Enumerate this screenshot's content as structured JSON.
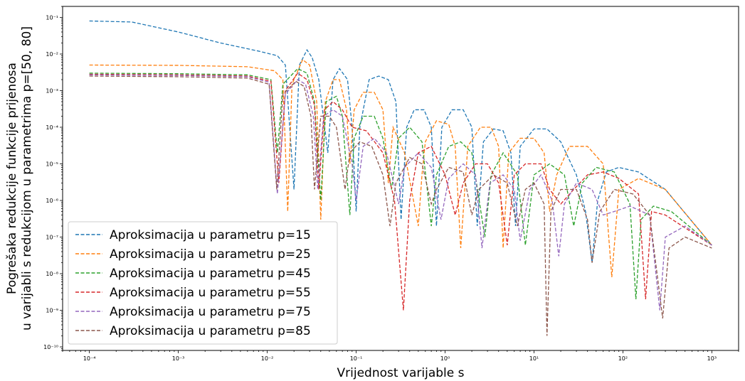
{
  "chart_data": {
    "type": "line",
    "title": "",
    "xlabel": "Vrijednost varijable s",
    "ylabel_lines": [
      "Pogrešaka redukcije funkcije prijenosa",
      "u varijabli s redukcijom u parametrima p=[50, 80]"
    ],
    "xscale": "log",
    "yscale": "log",
    "xlim": [
      5e-05,
      0.002
    ],
    "xlim_note": "",
    "x_range": [
      5e-05,
      2000
    ],
    "y_range": [
      8e-11,
      0.2
    ],
    "x_ticks": [
      {
        "value": 0.0001,
        "label": "10⁻⁴"
      },
      {
        "value": 0.001,
        "label": "10⁻³"
      },
      {
        "value": 0.01,
        "label": "10⁻²"
      },
      {
        "value": 0.1,
        "label": "10⁻¹"
      },
      {
        "value": 1,
        "label": "10⁰"
      },
      {
        "value": 10,
        "label": "10¹"
      },
      {
        "value": 100,
        "label": "10²"
      },
      {
        "value": 1000,
        "label": "10³"
      }
    ],
    "y_ticks": [
      {
        "value": 1e-10,
        "label": "10⁻¹⁰"
      },
      {
        "value": 1e-09,
        "label": "10⁻⁹"
      },
      {
        "value": 1e-08,
        "label": "10⁻⁸"
      },
      {
        "value": 1e-07,
        "label": "10⁻⁷"
      },
      {
        "value": 1e-06,
        "label": "10⁻⁶"
      },
      {
        "value": 1e-05,
        "label": "10⁻⁵"
      },
      {
        "value": 0.0001,
        "label": "10⁻⁴"
      },
      {
        "value": 0.001,
        "label": "10⁻³"
      },
      {
        "value": 0.01,
        "label": "10⁻²"
      },
      {
        "value": 0.1,
        "label": "10⁻¹"
      }
    ],
    "legend_position": "lower-left",
    "line_style": "dashed",
    "series": [
      {
        "name": "Aproksimacija u parametru p=15",
        "color": "#1f77b4",
        "base": 0.08,
        "drop_center": 0.003,
        "points": [
          [
            0.0001,
            0.08
          ],
          [
            0.0003,
            0.075
          ],
          [
            0.001,
            0.04
          ],
          [
            0.003,
            0.02
          ],
          [
            0.008,
            0.012
          ],
          [
            0.013,
            0.009
          ],
          [
            0.016,
            0.005
          ],
          [
            0.02,
            2e-06
          ],
          [
            0.023,
            0.005
          ],
          [
            0.028,
            0.013
          ],
          [
            0.032,
            0.008
          ],
          [
            0.038,
            0.002
          ],
          [
            0.048,
            2e-05
          ],
          [
            0.055,
            0.002
          ],
          [
            0.065,
            0.004
          ],
          [
            0.08,
            0.002
          ],
          [
            0.09,
            0.0001
          ],
          [
            0.1,
            5e-07
          ],
          [
            0.11,
            0.0001
          ],
          [
            0.14,
            0.002
          ],
          [
            0.18,
            0.0025
          ],
          [
            0.23,
            0.002
          ],
          [
            0.28,
            0.0005
          ],
          [
            0.32,
            3e-07
          ],
          [
            0.37,
            0.0001
          ],
          [
            0.45,
            0.0003
          ],
          [
            0.58,
            0.0003
          ],
          [
            0.7,
            0.0001
          ],
          [
            0.8,
            2e-07
          ],
          [
            0.92,
            0.0001
          ],
          [
            1.2,
            0.0003
          ],
          [
            1.6,
            0.0003
          ],
          [
            2,
            0.0001
          ],
          [
            2.3,
            2e-07
          ],
          [
            2.7,
            4e-05
          ],
          [
            3.5,
            9e-05
          ],
          [
            4.5,
            8e-05
          ],
          [
            5.5,
            2e-05
          ],
          [
            6.2,
            2e-07
          ],
          [
            7,
            3e-05
          ],
          [
            10,
            9e-05
          ],
          [
            14,
            9e-05
          ],
          [
            20,
            4e-05
          ],
          [
            30,
            5e-06
          ],
          [
            38,
            5e-07
          ],
          [
            45,
            2e-08
          ],
          [
            52,
            1e-06
          ],
          [
            65,
            6e-06
          ],
          [
            90,
            8e-06
          ],
          [
            150,
            6e-06
          ],
          [
            300,
            2e-06
          ],
          [
            1000,
            6e-08
          ]
        ]
      },
      {
        "name": "Aproksimacija u parametru p=25",
        "color": "#ff7f0e",
        "points": [
          [
            0.0001,
            0.005
          ],
          [
            0.001,
            0.0049
          ],
          [
            0.006,
            0.0045
          ],
          [
            0.012,
            0.0035
          ],
          [
            0.015,
            0.002
          ],
          [
            0.017,
            5e-07
          ],
          [
            0.019,
            0.0015
          ],
          [
            0.025,
            0.007
          ],
          [
            0.03,
            0.005
          ],
          [
            0.036,
            0.0005
          ],
          [
            0.04,
            3e-07
          ],
          [
            0.045,
            0.0005
          ],
          [
            0.055,
            0.002
          ],
          [
            0.065,
            0.002
          ],
          [
            0.078,
            0.0003
          ],
          [
            0.085,
            1e-05
          ],
          [
            0.095,
            0.0003
          ],
          [
            0.12,
            0.0009
          ],
          [
            0.16,
            0.0009
          ],
          [
            0.2,
            0.0003
          ],
          [
            0.23,
            3e-06
          ],
          [
            0.26,
            0.0001
          ],
          [
            0.35,
            2e-05
          ],
          [
            0.5,
            2e-07
          ],
          [
            0.55,
            5e-06
          ],
          [
            0.6,
            4e-05
          ],
          [
            0.8,
            0.00015
          ],
          [
            1.1,
            0.00012
          ],
          [
            1.3,
            3e-05
          ],
          [
            1.5,
            5e-08
          ],
          [
            1.8,
            3e-05
          ],
          [
            2.5,
            0.0001
          ],
          [
            3.3,
            0.0001
          ],
          [
            4,
            3e-05
          ],
          [
            4.5,
            5e-08
          ],
          [
            5.2,
            2e-05
          ],
          [
            7,
            5e-05
          ],
          [
            10,
            5e-05
          ],
          [
            13,
            2e-05
          ],
          [
            15,
            5e-07
          ],
          [
            18,
            5e-06
          ],
          [
            25,
            3e-05
          ],
          [
            40,
            3e-05
          ],
          [
            60,
            1e-05
          ],
          [
            75,
            8e-09
          ],
          [
            90,
            2e-06
          ],
          [
            150,
            4e-06
          ],
          [
            300,
            2e-06
          ],
          [
            1000,
            6e-08
          ]
        ]
      },
      {
        "name": "Aproksimacija u parametru p=45",
        "color": "#2ca02c",
        "points": [
          [
            0.0001,
            0.003
          ],
          [
            0.001,
            0.0029
          ],
          [
            0.006,
            0.0027
          ],
          [
            0.011,
            0.002
          ],
          [
            0.013,
            2e-05
          ],
          [
            0.015,
            0.0015
          ],
          [
            0.022,
            0.004
          ],
          [
            0.028,
            0.003
          ],
          [
            0.034,
            0.0005
          ],
          [
            0.04,
            1e-06
          ],
          [
            0.046,
            0.0005
          ],
          [
            0.06,
            0.0007
          ],
          [
            0.07,
            0.0002
          ],
          [
            0.085,
            4e-07
          ],
          [
            0.095,
            5e-05
          ],
          [
            0.12,
            0.0002
          ],
          [
            0.16,
            0.0002
          ],
          [
            0.2,
            5e-05
          ],
          [
            0.25,
            2e-06
          ],
          [
            0.3,
            5e-05
          ],
          [
            0.4,
            0.0001
          ],
          [
            0.55,
            4e-05
          ],
          [
            0.7,
            2e-07
          ],
          [
            0.8,
            5e-06
          ],
          [
            1.1,
            3e-05
          ],
          [
            1.5,
            4e-05
          ],
          [
            2,
            2e-05
          ],
          [
            2.8,
            1e-07
          ],
          [
            3.3,
            5e-06
          ],
          [
            4.5,
            2e-05
          ],
          [
            6.5,
            5e-06
          ],
          [
            8,
            6e-08
          ],
          [
            10,
            5e-06
          ],
          [
            15,
            1e-05
          ],
          [
            22,
            5e-06
          ],
          [
            28,
            2e-07
          ],
          [
            35,
            3e-06
          ],
          [
            50,
            8e-06
          ],
          [
            80,
            6e-06
          ],
          [
            120,
            8e-07
          ],
          [
            140,
            2e-09
          ],
          [
            160,
            3e-07
          ],
          [
            220,
            7e-07
          ],
          [
            350,
            5e-07
          ],
          [
            1000,
            6e-08
          ]
        ]
      },
      {
        "name": "Aproksimacija u parametru p=55",
        "color": "#d62728",
        "points": [
          [
            0.0001,
            0.0028
          ],
          [
            0.001,
            0.0027
          ],
          [
            0.006,
            0.0025
          ],
          [
            0.011,
            0.0018
          ],
          [
            0.0135,
            3e-06
          ],
          [
            0.016,
            0.001
          ],
          [
            0.022,
            0.003
          ],
          [
            0.028,
            0.002
          ],
          [
            0.034,
            0.0004
          ],
          [
            0.038,
            2e-06
          ],
          [
            0.044,
            0.0003
          ],
          [
            0.055,
            0.0005
          ],
          [
            0.07,
            0.0003
          ],
          [
            0.09,
            0.0001
          ],
          [
            0.13,
            8e-05
          ],
          [
            0.2,
            2e-05
          ],
          [
            0.27,
            1e-06
          ],
          [
            0.34,
            1e-09
          ],
          [
            0.4,
            1e-06
          ],
          [
            0.5,
            2e-05
          ],
          [
            0.7,
            3e-05
          ],
          [
            1,
            5e-06
          ],
          [
            1.3,
            4e-07
          ],
          [
            1.6,
            3e-06
          ],
          [
            2.2,
            1e-05
          ],
          [
            3,
            1e-05
          ],
          [
            4,
            3e-06
          ],
          [
            5,
            6e-08
          ],
          [
            6,
            5e-06
          ],
          [
            8,
            1e-05
          ],
          [
            12,
            1e-05
          ],
          [
            15,
            2e-06
          ],
          [
            20,
            8e-07
          ],
          [
            28,
            2e-06
          ],
          [
            40,
            5e-06
          ],
          [
            60,
            6e-06
          ],
          [
            90,
            4e-06
          ],
          [
            150,
            1.5e-06
          ],
          [
            180,
            2e-09
          ],
          [
            210,
            5e-07
          ],
          [
            300,
            4e-07
          ],
          [
            1000,
            6e-08
          ]
        ]
      },
      {
        "name": "Aproksimacija u parametru p=75",
        "color": "#9467bd",
        "points": [
          [
            0.0001,
            0.0027
          ],
          [
            0.001,
            0.0026
          ],
          [
            0.006,
            0.0024
          ],
          [
            0.0105,
            0.0017
          ],
          [
            0.013,
            1.5e-06
          ],
          [
            0.016,
            0.0008
          ],
          [
            0.022,
            0.002
          ],
          [
            0.027,
            0.0015
          ],
          [
            0.033,
            0.0002
          ],
          [
            0.037,
            2e-06
          ],
          [
            0.043,
            0.0002
          ],
          [
            0.055,
            0.0003
          ],
          [
            0.07,
            0.0002
          ],
          [
            0.09,
            1e-05
          ],
          [
            0.1,
            1e-06
          ],
          [
            0.12,
            3e-05
          ],
          [
            0.16,
            5e-05
          ],
          [
            0.22,
            2e-05
          ],
          [
            0.3,
            8e-07
          ],
          [
            0.35,
            8e-06
          ],
          [
            0.5,
            2e-05
          ],
          [
            0.7,
            8e-06
          ],
          [
            0.9,
            3e-07
          ],
          [
            1.1,
            4e-06
          ],
          [
            1.6,
            1e-05
          ],
          [
            2.2,
            5e-06
          ],
          [
            2.6,
            5e-08
          ],
          [
            3.2,
            3e-06
          ],
          [
            4.5,
            5e-06
          ],
          [
            6,
            2e-06
          ],
          [
            7,
            8e-08
          ],
          [
            9,
            2e-06
          ],
          [
            12,
            5e-06
          ],
          [
            16,
            1e-06
          ],
          [
            19,
            3e-08
          ],
          [
            22,
            8e-07
          ],
          [
            30,
            3e-06
          ],
          [
            45,
            2e-06
          ],
          [
            60,
            4e-07
          ],
          [
            80,
            5e-07
          ],
          [
            120,
            7e-07
          ],
          [
            200,
            4e-07
          ],
          [
            260,
            1e-09
          ],
          [
            300,
            1e-07
          ],
          [
            500,
            2e-07
          ],
          [
            1000,
            6e-08
          ]
        ]
      },
      {
        "name": "Aproksimacija u parametru p=85",
        "color": "#8c564b",
        "points": [
          [
            0.0001,
            0.0025
          ],
          [
            0.001,
            0.0024
          ],
          [
            0.006,
            0.0022
          ],
          [
            0.0105,
            0.0015
          ],
          [
            0.0128,
            2e-06
          ],
          [
            0.015,
            0.0008
          ],
          [
            0.021,
            0.0018
          ],
          [
            0.026,
            0.0013
          ],
          [
            0.031,
            0.0002
          ],
          [
            0.034,
            2e-06
          ],
          [
            0.04,
            0.0002
          ],
          [
            0.05,
            0.0002
          ],
          [
            0.06,
            0.0001
          ],
          [
            0.075,
            2e-06
          ],
          [
            0.085,
            2e-05
          ],
          [
            0.11,
            4e-05
          ],
          [
            0.15,
            3e-05
          ],
          [
            0.2,
            5e-06
          ],
          [
            0.24,
            2e-07
          ],
          [
            0.28,
            3e-06
          ],
          [
            0.4,
            1.5e-05
          ],
          [
            0.55,
            1e-05
          ],
          [
            0.7,
            8e-07
          ],
          [
            0.8,
            2e-06
          ],
          [
            1.1,
            8e-06
          ],
          [
            1.6,
            6e-06
          ],
          [
            2,
            4e-07
          ],
          [
            2.4,
            2e-06
          ],
          [
            3.5,
            5e-06
          ],
          [
            5,
            3e-06
          ],
          [
            6.5,
            2e-07
          ],
          [
            8,
            2e-06
          ],
          [
            10,
            3e-06
          ],
          [
            13,
            8e-07
          ],
          [
            14,
            2e-10
          ],
          [
            15.5,
            5e-07
          ],
          [
            20,
            2e-06
          ],
          [
            30,
            2e-06
          ],
          [
            40,
            3e-07
          ],
          [
            45,
            2e-08
          ],
          [
            55,
            5e-07
          ],
          [
            80,
            2e-06
          ],
          [
            130,
            1.5e-06
          ],
          [
            200,
            4e-07
          ],
          [
            280,
            6e-10
          ],
          [
            330,
            5e-08
          ],
          [
            500,
            1e-07
          ],
          [
            1000,
            5e-08
          ]
        ]
      }
    ]
  }
}
